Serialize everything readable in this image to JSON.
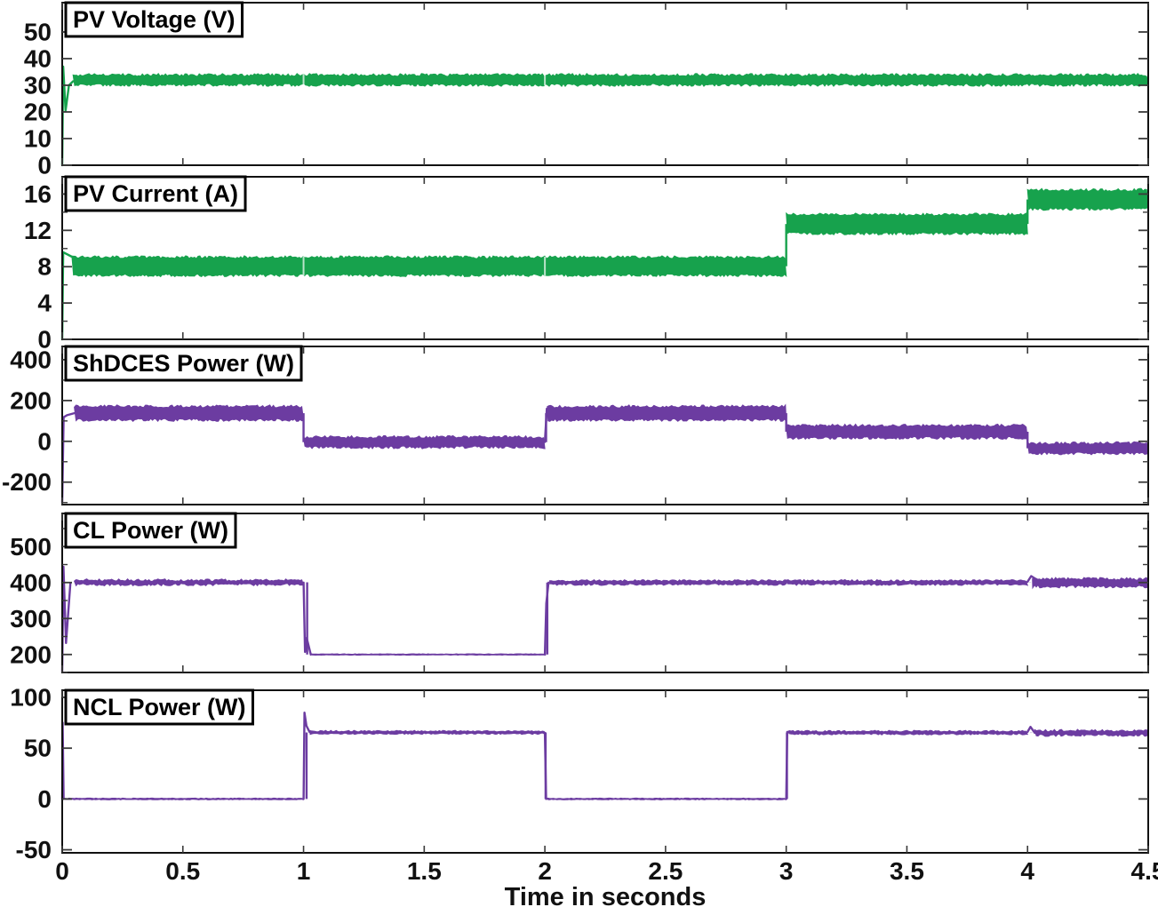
{
  "chart_data": {
    "type": "line",
    "title": "",
    "xlabel": "Time in seconds",
    "xlim": [
      0,
      4.5
    ],
    "x_ticks": [
      "0",
      "0.5",
      "1",
      "1.5",
      "2",
      "2.5",
      "3",
      "3.5",
      "4",
      "4.5"
    ],
    "x_tick_values": [
      0,
      0.5,
      1,
      1.5,
      2,
      2.5,
      3,
      3.5,
      4,
      4.5
    ],
    "grid": false,
    "legend_position": "none",
    "colors": {
      "pv_trace": "#17A24D",
      "power_trace": "#6C3CA1",
      "axis": "#111111",
      "tick": "#3a3a3a",
      "label": "#111111",
      "title_box_bg": "#ffffff",
      "title_box_border": "#000000"
    },
    "panels": [
      {
        "id": "pv-voltage",
        "title": "PV Voltage (V)",
        "unit": "V",
        "color": "#17A24D",
        "ylim": [
          0,
          61
        ],
        "yticks": [
          50,
          40,
          30,
          20,
          10,
          0
        ],
        "minor_tick": null,
        "levels": [
          {
            "t0": 0,
            "t1": 4.5,
            "value": 32
          }
        ],
        "noise_bands": [
          {
            "t0": 0.045,
            "t1": 4.5,
            "lo": 29.6,
            "hi": 34.4
          }
        ],
        "transient_lines": [
          [
            [
              0,
              0
            ],
            [
              0.004,
              37
            ],
            [
              0.014,
              20.5
            ],
            [
              0.028,
              30
            ],
            [
              0.045,
              31.5
            ]
          ]
        ],
        "glitch_times": [
          1,
          2
        ]
      },
      {
        "id": "pv-current",
        "title": "PV Current (A)",
        "unit": "A",
        "color": "#17A24D",
        "ylim": [
          0,
          17.9
        ],
        "yticks": [
          16,
          12,
          8,
          4,
          0
        ],
        "minor_tick": 2,
        "levels": [
          {
            "t0": 0,
            "t1": 3,
            "value": 8
          },
          {
            "t0": 3,
            "t1": 4,
            "value": 12.8
          },
          {
            "t0": 4,
            "t1": 4.5,
            "value": 15.4
          }
        ],
        "noise_bands": [
          {
            "t0": 0.04,
            "t1": 3,
            "lo": 6.9,
            "hi": 9.2
          },
          {
            "t0": 3,
            "t1": 4,
            "lo": 11.5,
            "hi": 13.9
          },
          {
            "t0": 4,
            "t1": 4.5,
            "lo": 14.2,
            "hi": 16.6
          }
        ],
        "transient_lines": [
          [
            [
              0,
              0
            ],
            [
              0.004,
              9.6
            ],
            [
              0.04,
              9.1
            ]
          ]
        ],
        "glitch_times": [
          1,
          2
        ]
      },
      {
        "id": "shdces-power",
        "title": "ShDCES Power (W)",
        "unit": "W",
        "color": "#6C3CA1",
        "ylim": [
          -310,
          465
        ],
        "yticks": [
          400,
          200,
          0,
          -200
        ],
        "minor_tick": 100,
        "levels": [
          {
            "t0": 0,
            "t1": 1,
            "value": 138
          },
          {
            "t0": 1,
            "t1": 2,
            "value": -4
          },
          {
            "t0": 2,
            "t1": 3,
            "value": 138
          },
          {
            "t0": 3,
            "t1": 4,
            "value": 47
          },
          {
            "t0": 4,
            "t1": 4.5,
            "value": -34
          }
        ],
        "noise_bands": [
          {
            "t0": 0.05,
            "t1": 1,
            "lo": 98,
            "hi": 178
          },
          {
            "t0": 1,
            "t1": 2,
            "lo": -36,
            "hi": 28
          },
          {
            "t0": 2.01,
            "t1": 3,
            "lo": 98,
            "hi": 178
          },
          {
            "t0": 3,
            "t1": 4,
            "lo": 10,
            "hi": 84
          },
          {
            "t0": 4,
            "t1": 4.5,
            "lo": -66,
            "hi": -2
          }
        ],
        "transient_lines": [
          [
            [
              0,
              -300
            ],
            [
              0.006,
              118
            ],
            [
              0.02,
              128
            ],
            [
              0.05,
              138
            ]
          ],
          [
            [
              2,
              -3
            ],
            [
              2.008,
              160
            ],
            [
              2.03,
              140
            ]
          ]
        ],
        "glitch_times": []
      },
      {
        "id": "cl-power",
        "title": "CL Power (W)",
        "unit": "W",
        "color": "#6C3CA1",
        "ylim": [
          150,
          592
        ],
        "yticks": [
          500,
          400,
          300,
          200
        ],
        "minor_tick": 50,
        "levels": [
          {
            "t0": 0,
            "t1": 1,
            "value": 400
          },
          {
            "t0": 1,
            "t1": 2,
            "value": 200
          },
          {
            "t0": 2,
            "t1": 3,
            "value": 400
          },
          {
            "t0": 3,
            "t1": 4,
            "value": 400
          },
          {
            "t0": 4,
            "t1": 4.5,
            "value": 400
          }
        ],
        "noise_bands": [
          {
            "t0": 0.05,
            "t1": 1,
            "lo": 391,
            "hi": 410
          },
          {
            "t0": 1.03,
            "t1": 2,
            "lo": 198,
            "hi": 202
          },
          {
            "t0": 2.02,
            "t1": 3,
            "lo": 392,
            "hi": 408
          },
          {
            "t0": 3,
            "t1": 4,
            "lo": 392,
            "hi": 408
          },
          {
            "t0": 4.02,
            "t1": 4.5,
            "lo": 385,
            "hi": 414
          }
        ],
        "transient_lines": [
          [
            [
              0,
              152
            ],
            [
              0.005,
              444
            ],
            [
              0.016,
              232
            ],
            [
              0.034,
              398
            ]
          ],
          [
            [
              1,
              400
            ],
            [
              1.006,
              207
            ],
            [
              1.013,
              246
            ],
            [
              1.03,
              200
            ]
          ],
          [
            [
              2,
              200
            ],
            [
              2.006,
              342
            ],
            [
              2.015,
              400
            ]
          ],
          [
            [
              4,
              402
            ],
            [
              4.015,
              418
            ],
            [
              4.05,
              403
            ]
          ]
        ],
        "glitch_times": []
      },
      {
        "id": "ncl-power",
        "title": "NCL Power (W)",
        "unit": "W",
        "color": "#6C3CA1",
        "ylim": [
          -53,
          107
        ],
        "yticks": [
          100,
          50,
          0,
          -50
        ],
        "minor_tick": null,
        "levels": [
          {
            "t0": 0,
            "t1": 1,
            "value": 0
          },
          {
            "t0": 1,
            "t1": 2,
            "value": 65
          },
          {
            "t0": 2,
            "t1": 3,
            "value": 0
          },
          {
            "t0": 3,
            "t1": 4,
            "value": 65
          },
          {
            "t0": 4,
            "t1": 4.5,
            "value": 65
          }
        ],
        "noise_bands": [
          {
            "t0": 0.007,
            "t1": 1,
            "lo": -0.9,
            "hi": 0.9
          },
          {
            "t0": 1.025,
            "t1": 2,
            "lo": 63.5,
            "hi": 67.5
          },
          {
            "t0": 2.006,
            "t1": 3,
            "lo": -0.9,
            "hi": 0.9
          },
          {
            "t0": 3.006,
            "t1": 4,
            "lo": 63,
            "hi": 67.5
          },
          {
            "t0": 4.03,
            "t1": 4.5,
            "lo": 61.5,
            "hi": 68.5
          }
        ],
        "transient_lines": [
          [
            [
              0,
              0
            ],
            [
              0.002,
              75
            ],
            [
              0.006,
              0
            ]
          ],
          [
            [
              1,
              0
            ],
            [
              1.004,
              85
            ],
            [
              1.012,
              72
            ],
            [
              1.025,
              66
            ]
          ],
          [
            [
              2,
              65
            ],
            [
              2.005,
              0
            ]
          ],
          [
            [
              3,
              0
            ],
            [
              3.004,
              66
            ]
          ],
          [
            [
              4,
              66
            ],
            [
              4.012,
              71
            ],
            [
              4.03,
              65
            ]
          ]
        ],
        "glitch_times": []
      }
    ]
  }
}
